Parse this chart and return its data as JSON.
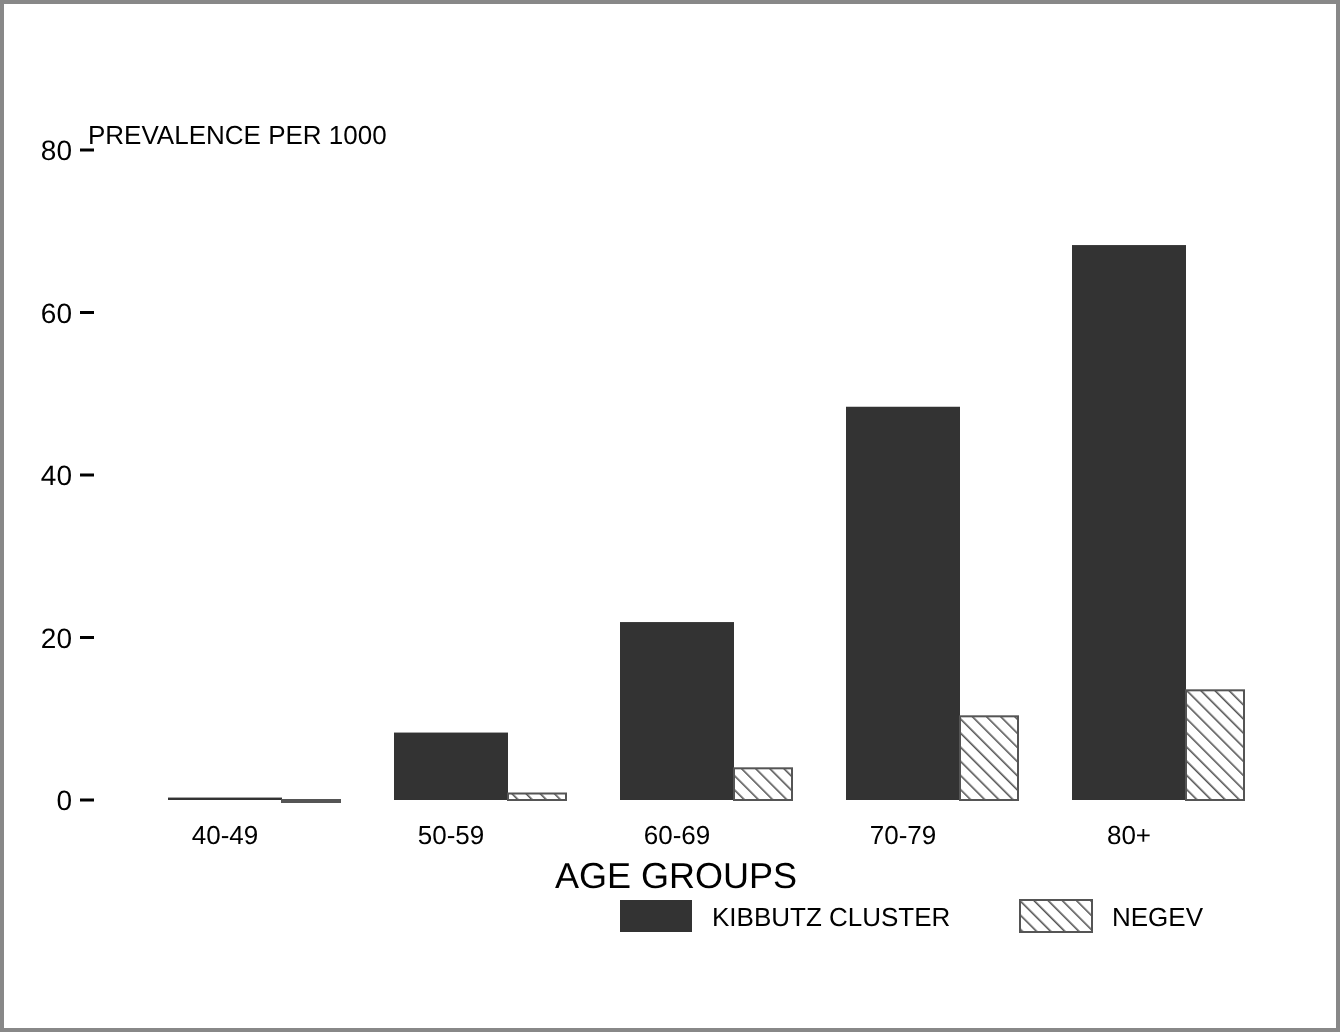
{
  "chart_data": {
    "type": "bar",
    "ylabel": "PREVALENCE PER 1000",
    "xlabel": "AGE GROUPS",
    "categories": [
      "40-49",
      "50-59",
      "60-69",
      "70-79",
      "80+"
    ],
    "series": [
      {
        "name": "KIBBUTZ CLUSTER",
        "color": "#333333",
        "values": [
          0.3,
          8.3,
          21.9,
          48.4,
          68.3
        ]
      },
      {
        "name": "NEGEV",
        "color": "#555555",
        "values": [
          0,
          0.8,
          3.9,
          10.3,
          13.5
        ]
      }
    ],
    "ylim": [
      0,
      80
    ],
    "yticks": [
      0,
      20,
      40,
      60,
      80
    ],
    "grid": false,
    "legend": "bottom right"
  }
}
